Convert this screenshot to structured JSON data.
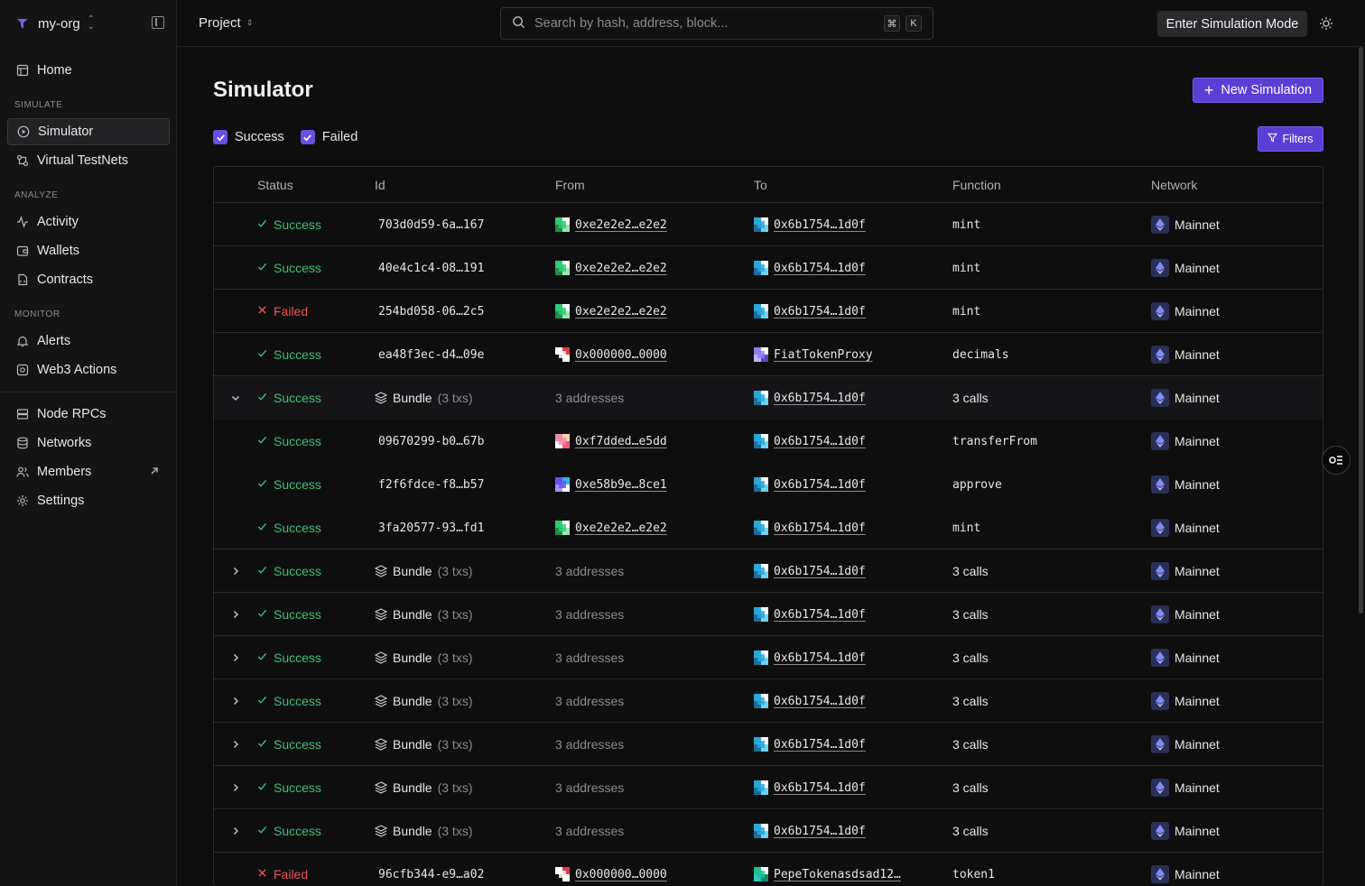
{
  "sidebar": {
    "org_name": "my-org",
    "items_top": [
      {
        "label": "Home",
        "icon": "home-icon"
      }
    ],
    "sections": [
      {
        "label": "SIMULATE",
        "items": [
          {
            "label": "Simulator",
            "icon": "play-circle-icon",
            "active": true
          },
          {
            "label": "Virtual TestNets",
            "icon": "testnet-icon"
          }
        ]
      },
      {
        "label": "ANALYZE",
        "items": [
          {
            "label": "Activity",
            "icon": "activity-icon"
          },
          {
            "label": "Wallets",
            "icon": "wallet-icon"
          },
          {
            "label": "Contracts",
            "icon": "contract-icon"
          }
        ]
      },
      {
        "label": "MONITOR",
        "items": [
          {
            "label": "Alerts",
            "icon": "bell-icon"
          },
          {
            "label": "Web3 Actions",
            "icon": "gear-box-icon"
          }
        ]
      }
    ],
    "items_bottom": [
      {
        "label": "Node RPCs",
        "icon": "server-icon"
      },
      {
        "label": "Networks",
        "icon": "database-icon"
      },
      {
        "label": "Members",
        "icon": "members-icon",
        "external": true
      },
      {
        "label": "Settings",
        "icon": "gear-icon"
      }
    ]
  },
  "topbar": {
    "project_label": "Project",
    "search_placeholder": "Search by hash, address, block...",
    "shortcut_keys": [
      "⌘",
      "K"
    ],
    "sim_mode_label": "Enter Simulation Mode"
  },
  "page": {
    "title": "Simulator",
    "new_sim_label": "New Simulation",
    "filter_success": "Success",
    "filter_failed": "Failed",
    "filters_label": "Filters"
  },
  "table": {
    "headers": [
      "Status",
      "Id",
      "From",
      "To",
      "Function",
      "Network"
    ],
    "rows": [
      {
        "kind": "tx",
        "status": "Success",
        "id": "703d0d59-6a…167",
        "from": "0xe2e2e2…e2e2",
        "from_av": "green",
        "to": "0x6b1754…1d0f",
        "to_av": "blue",
        "func": "mint",
        "network": "Mainnet"
      },
      {
        "kind": "tx",
        "status": "Success",
        "id": "40e4c1c4-08…191",
        "from": "0xe2e2e2…e2e2",
        "from_av": "green",
        "to": "0x6b1754…1d0f",
        "to_av": "blue",
        "func": "mint",
        "network": "Mainnet"
      },
      {
        "kind": "tx",
        "status": "Failed",
        "id": "254bd058-06…2c5",
        "from": "0xe2e2e2…e2e2",
        "from_av": "green",
        "to": "0x6b1754…1d0f",
        "to_av": "blue",
        "func": "mint",
        "network": "Mainnet"
      },
      {
        "kind": "tx",
        "status": "Success",
        "id": "ea48f3ec-d4…09e",
        "from": "0x000000…0000",
        "from_av": "red",
        "to": "FiatTokenProxy",
        "to_av": "purple",
        "func": "decimals",
        "network": "Mainnet"
      },
      {
        "kind": "bundle",
        "open": true,
        "status": "Success",
        "bundle": "Bundle",
        "txs": "(3 txs)",
        "from": "3 addresses",
        "to": "0x6b1754…1d0f",
        "to_av": "blue",
        "func": "3 calls",
        "network": "Mainnet"
      },
      {
        "kind": "sub",
        "status": "Success",
        "id": "09670299-b0…67b",
        "from": "0xf7dded…e5dd",
        "from_av": "pink",
        "to": "0x6b1754…1d0f",
        "to_av": "blue",
        "func": "transferFrom",
        "network": "Mainnet"
      },
      {
        "kind": "sub",
        "status": "Success",
        "id": "f2f6fdce-f8…b57",
        "from": "0xe58b9e…8ce1",
        "from_av": "violet",
        "to": "0x6b1754…1d0f",
        "to_av": "blue",
        "func": "approve",
        "network": "Mainnet"
      },
      {
        "kind": "sub-last",
        "status": "Success",
        "id": "3fa20577-93…fd1",
        "from": "0xe2e2e2…e2e2",
        "from_av": "green",
        "to": "0x6b1754…1d0f",
        "to_av": "blue",
        "func": "mint",
        "network": "Mainnet"
      },
      {
        "kind": "bundle",
        "status": "Success",
        "bundle": "Bundle",
        "txs": "(3 txs)",
        "from": "3 addresses",
        "to": "0x6b1754…1d0f",
        "to_av": "blue",
        "func": "3 calls",
        "network": "Mainnet"
      },
      {
        "kind": "bundle",
        "status": "Success",
        "bundle": "Bundle",
        "txs": "(3 txs)",
        "from": "3 addresses",
        "to": "0x6b1754…1d0f",
        "to_av": "blue",
        "func": "3 calls",
        "network": "Mainnet"
      },
      {
        "kind": "bundle",
        "status": "Success",
        "bundle": "Bundle",
        "txs": "(3 txs)",
        "from": "3 addresses",
        "to": "0x6b1754…1d0f",
        "to_av": "blue",
        "func": "3 calls",
        "network": "Mainnet"
      },
      {
        "kind": "bundle",
        "status": "Success",
        "bundle": "Bundle",
        "txs": "(3 txs)",
        "from": "3 addresses",
        "to": "0x6b1754…1d0f",
        "to_av": "blue",
        "func": "3 calls",
        "network": "Mainnet"
      },
      {
        "kind": "bundle",
        "status": "Success",
        "bundle": "Bundle",
        "txs": "(3 txs)",
        "from": "3 addresses",
        "to": "0x6b1754…1d0f",
        "to_av": "blue",
        "func": "3 calls",
        "network": "Mainnet"
      },
      {
        "kind": "bundle",
        "status": "Success",
        "bundle": "Bundle",
        "txs": "(3 txs)",
        "from": "3 addresses",
        "to": "0x6b1754…1d0f",
        "to_av": "blue",
        "func": "3 calls",
        "network": "Mainnet"
      },
      {
        "kind": "bundle",
        "status": "Success",
        "bundle": "Bundle",
        "txs": "(3 txs)",
        "from": "3 addresses",
        "to": "0x6b1754…1d0f",
        "to_av": "blue",
        "func": "3 calls",
        "network": "Mainnet"
      },
      {
        "kind": "tx",
        "status": "Failed",
        "id": "96cfb344-e9…a02",
        "from": "0x000000…0000",
        "from_av": "red",
        "to": "PepeTokenasdsad12…",
        "to_av": "teal",
        "func": "token1",
        "network": "Mainnet"
      }
    ]
  },
  "colors": {
    "accent": "#5b3fd4",
    "success": "#3fbf7a",
    "failed": "#f05252"
  }
}
